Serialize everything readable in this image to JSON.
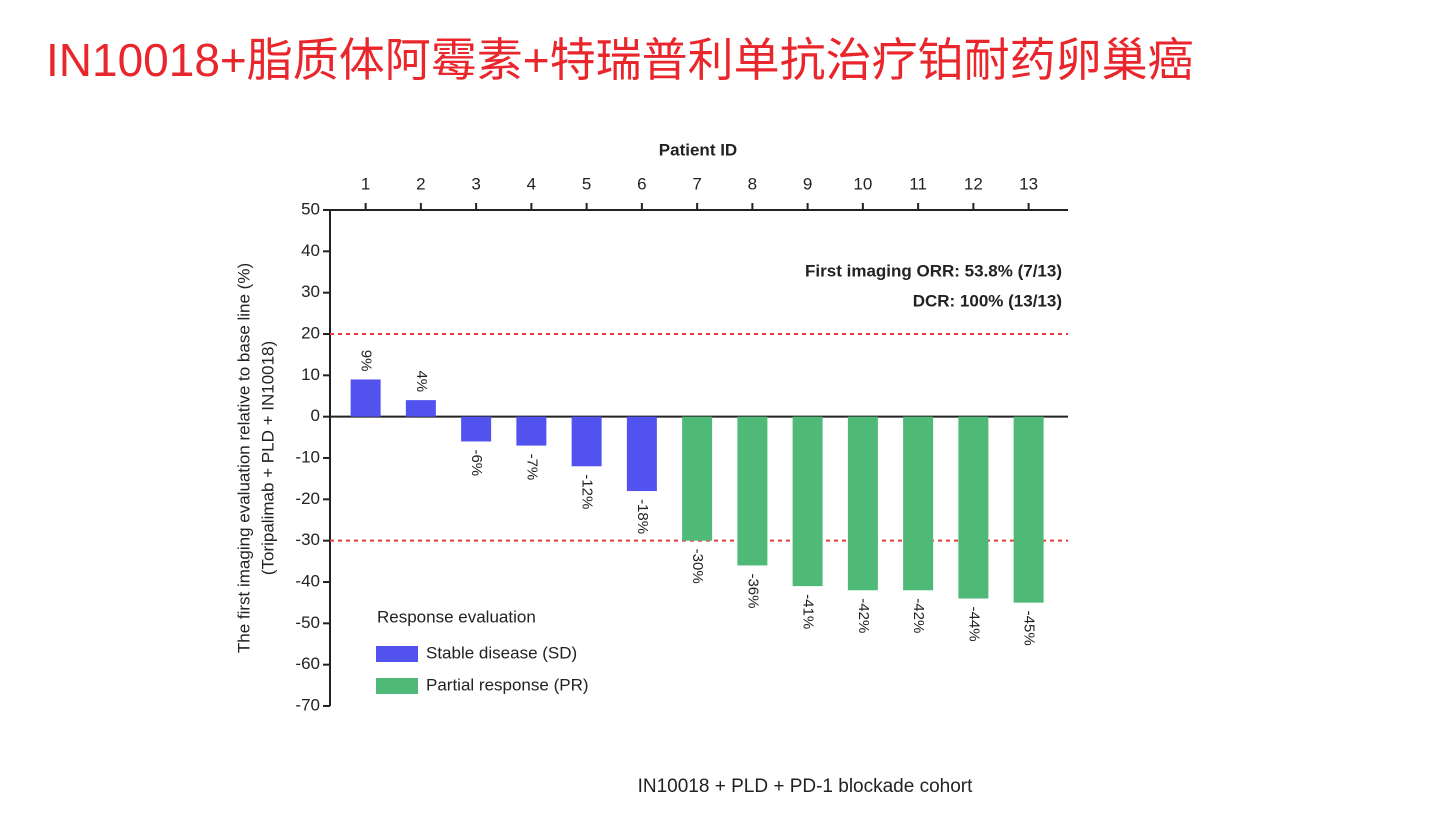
{
  "slide_title": "IN10018+脂质体阿霉素+特瑞普利单抗治疗铂耐药卵巢癌",
  "chart_data": {
    "type": "bar",
    "x_label": "Patient ID",
    "y_label": [
      "The first imaging evaluation relative to base line (%)",
      "(Toripalimab + PLD + IN10018)"
    ],
    "caption": "IN10018 + PLD + PD-1 blockade cohort",
    "annotations": [
      "First imaging ORR: 53.8% (7/13)",
      "DCR: 100% (13/13)"
    ],
    "categories": [
      "1",
      "2",
      "3",
      "4",
      "5",
      "6",
      "7",
      "8",
      "9",
      "10",
      "11",
      "12",
      "13"
    ],
    "series": [
      {
        "name": "Stable disease (SD)",
        "color": "#5252ee",
        "values": [
          9,
          4,
          -6,
          -7,
          -12,
          -18,
          null,
          null,
          null,
          null,
          null,
          null,
          null
        ],
        "value_labels": [
          "9%",
          "4%",
          "-6%",
          "-7%",
          "-12%",
          "-18%",
          null,
          null,
          null,
          null,
          null,
          null,
          null
        ]
      },
      {
        "name": "Partial response (PR)",
        "color": "#4fba78",
        "values": [
          null,
          null,
          null,
          null,
          null,
          null,
          -30,
          -36,
          -41,
          -42,
          -42,
          -44,
          -45
        ],
        "value_labels": [
          null,
          null,
          null,
          null,
          null,
          null,
          "-30%",
          "-36%",
          "-41%",
          "-42%",
          "-42%",
          "-44%",
          "-45%"
        ]
      }
    ],
    "legend_title": "Response evaluation",
    "legend": "lower left",
    "reference_lines": [
      20,
      -30
    ],
    "reference_color": "#e83a3a",
    "ylim": [
      -70,
      50
    ],
    "yticks": [
      -70,
      -60,
      -50,
      -40,
      -30,
      -20,
      -10,
      0,
      10,
      20,
      30,
      40,
      50
    ]
  }
}
